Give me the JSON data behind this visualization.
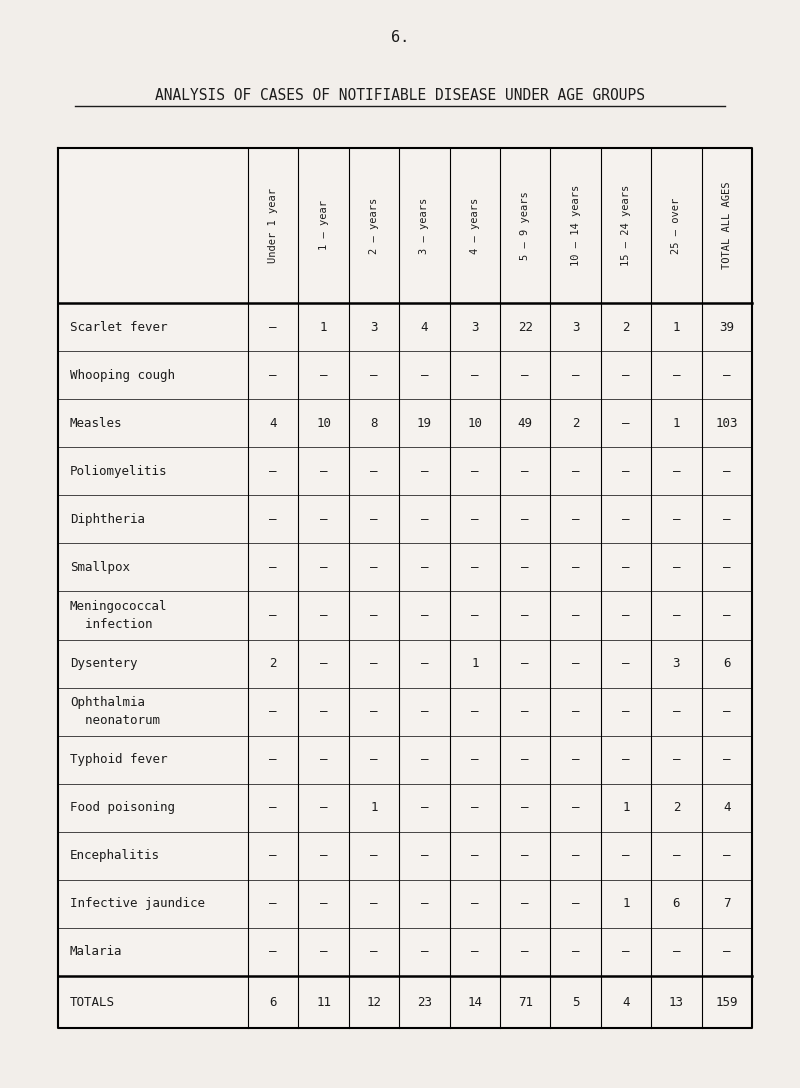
{
  "page_number": "6.",
  "title": "ANALYSIS OF CASES OF NOTIFIABLE DISEASE UNDER AGE GROUPS",
  "col_headers": [
    "Under 1 year",
    "1 – year",
    "2 – years",
    "3 – years",
    "4 – years",
    "5 – 9 years",
    "10 – 14 years",
    "15 – 24 years",
    "25 – over",
    "TOTAL ALL AGES"
  ],
  "rows": [
    {
      "label": "Scarlet fever",
      "label2": null,
      "values": [
        "–",
        "1",
        "3",
        "4",
        "3",
        "22",
        "3",
        "2",
        "1",
        "39"
      ]
    },
    {
      "label": "Whooping cough",
      "label2": null,
      "values": [
        "–",
        "–",
        "–",
        "–",
        "–",
        "–",
        "–",
        "–",
        "–",
        "–"
      ]
    },
    {
      "label": "Measles",
      "label2": null,
      "values": [
        "4",
        "10",
        "8",
        "19",
        "10",
        "49",
        "2",
        "–",
        "1",
        "103"
      ]
    },
    {
      "label": "Poliomyelitis",
      "label2": null,
      "values": [
        "–",
        "–",
        "–",
        "–",
        "–",
        "–",
        "–",
        "–",
        "–",
        "–"
      ]
    },
    {
      "label": "Diphtheria",
      "label2": null,
      "values": [
        "–",
        "–",
        "–",
        "–",
        "–",
        "–",
        "–",
        "–",
        "–",
        "–"
      ]
    },
    {
      "label": "Smallpox",
      "label2": null,
      "values": [
        "–",
        "–",
        "–",
        "–",
        "–",
        "–",
        "–",
        "–",
        "–",
        "–"
      ]
    },
    {
      "label": "Meningococcal",
      "label2": "  infection",
      "values": [
        "–",
        "–",
        "–",
        "–",
        "–",
        "–",
        "–",
        "–",
        "–",
        "–"
      ]
    },
    {
      "label": "Dysentery",
      "label2": null,
      "values": [
        "2",
        "–",
        "–",
        "–",
        "1",
        "–",
        "–",
        "–",
        "3",
        "6"
      ]
    },
    {
      "label": "Ophthalmia",
      "label2": "  neonatorum",
      "values": [
        "–",
        "–",
        "–",
        "–",
        "–",
        "–",
        "–",
        "–",
        "–",
        "–"
      ]
    },
    {
      "label": "Typhoid fever",
      "label2": null,
      "values": [
        "–",
        "–",
        "–",
        "–",
        "–",
        "–",
        "–",
        "–",
        "–",
        "–"
      ]
    },
    {
      "label": "Food poisoning",
      "label2": null,
      "values": [
        "–",
        "–",
        "1",
        "–",
        "–",
        "–",
        "–",
        "1",
        "2",
        "4"
      ]
    },
    {
      "label": "Encephalitis",
      "label2": null,
      "values": [
        "–",
        "–",
        "–",
        "–",
        "–",
        "–",
        "–",
        "–",
        "–",
        "–"
      ]
    },
    {
      "label": "Infective jaundice",
      "label2": null,
      "values": [
        "–",
        "–",
        "–",
        "–",
        "–",
        "–",
        "–",
        "1",
        "6",
        "7"
      ]
    },
    {
      "label": "Malaria",
      "label2": null,
      "values": [
        "–",
        "–",
        "–",
        "–",
        "–",
        "–",
        "–",
        "–",
        "–",
        "–"
      ]
    }
  ],
  "totals_label": "TOTALS",
  "totals_values": [
    "6",
    "11",
    "12",
    "23",
    "14",
    "71",
    "5",
    "4",
    "13",
    "159"
  ],
  "bg_color": "#f2eeea",
  "table_bg": "#f5f2ee",
  "text_color": "#1c1c1c"
}
